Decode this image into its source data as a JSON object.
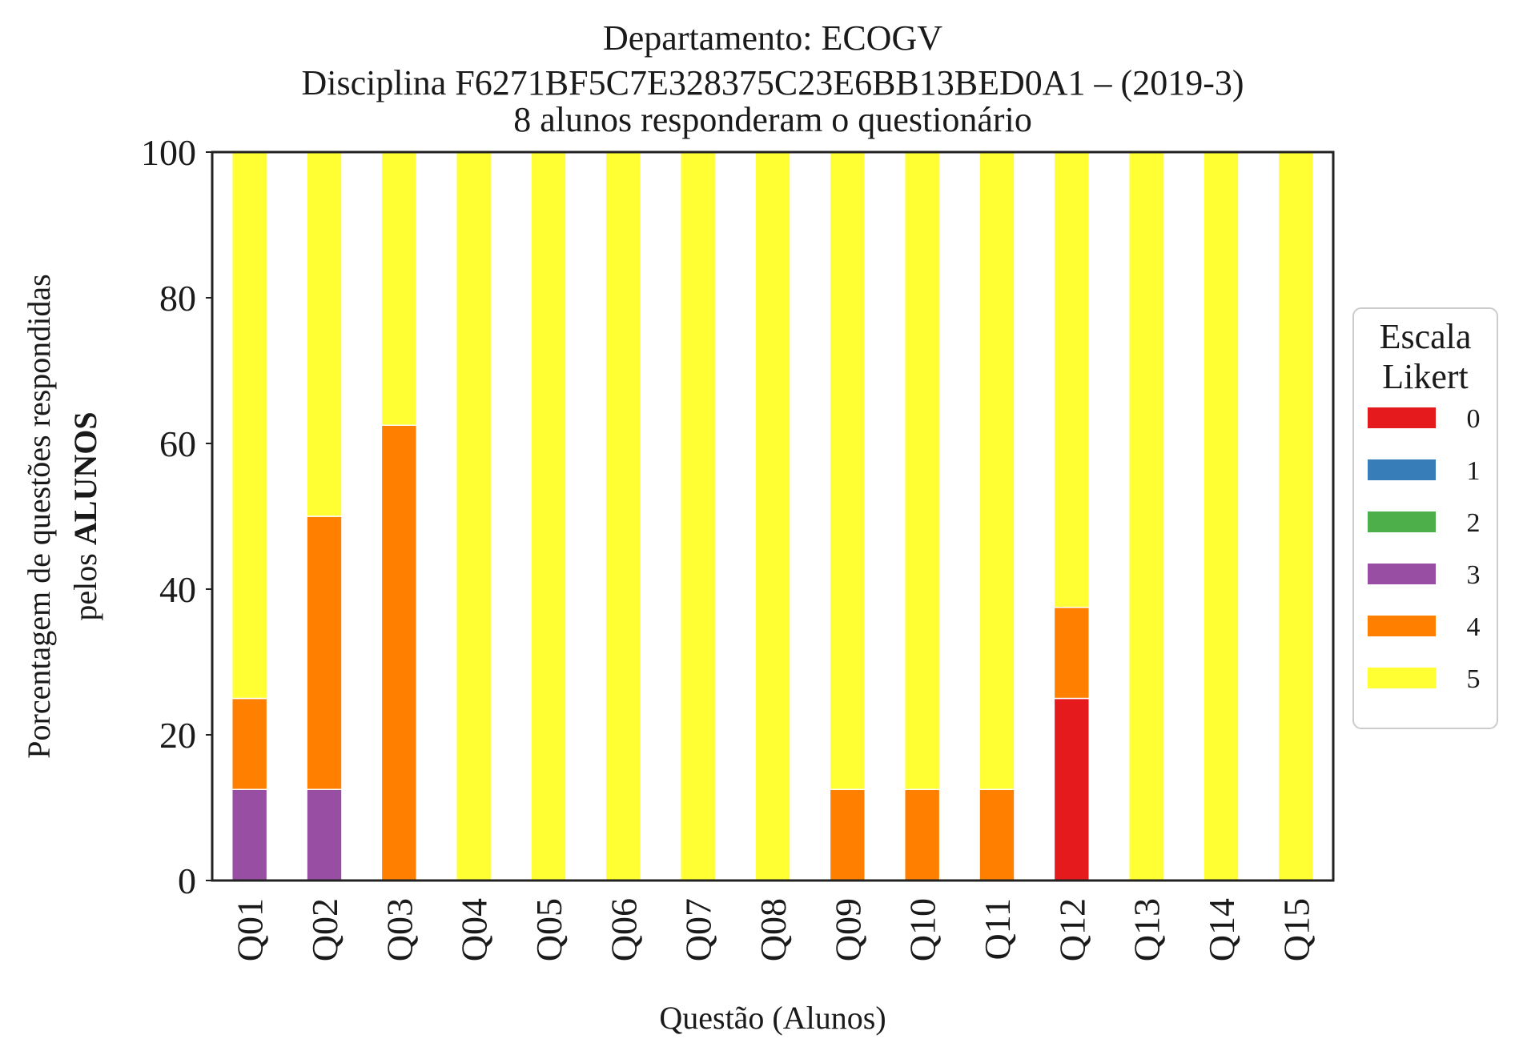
{
  "chart_data": {
    "type": "bar",
    "stacked": true,
    "title_lines": [
      "Departamento: ECOGV",
      "Disciplina F6271BF5C7E328375C23E6BB13BED0A1 – (2019-3)",
      "8 alunos responderam o questionário"
    ],
    "xlabel": "Questão (Alunos)",
    "ylabel_line1": "Porcentagem de questões respondidas",
    "ylabel_line2_prefix": "pelos ",
    "ylabel_line2_bold": "ALUNOS",
    "ylim": [
      0,
      100
    ],
    "yticks": [
      "0",
      "20",
      "40",
      "60",
      "80",
      "100"
    ],
    "categories": [
      "Q01",
      "Q02",
      "Q03",
      "Q04",
      "Q05",
      "Q06",
      "Q07",
      "Q08",
      "Q09",
      "Q10",
      "Q11",
      "Q12",
      "Q13",
      "Q14",
      "Q15"
    ],
    "legend": {
      "title_lines": [
        "Escala",
        "Likert"
      ],
      "placement": "right"
    },
    "grid": false,
    "series": [
      {
        "name": "0",
        "color": "#e41a1c",
        "values": [
          0,
          0,
          0,
          0,
          0,
          0,
          0,
          0,
          0,
          0,
          0,
          25,
          0,
          0,
          0
        ]
      },
      {
        "name": "1",
        "color": "#377eb8",
        "values": [
          0,
          0,
          0,
          0,
          0,
          0,
          0,
          0,
          0,
          0,
          0,
          0,
          0,
          0,
          0
        ]
      },
      {
        "name": "2",
        "color": "#4daf4a",
        "values": [
          0,
          0,
          0,
          0,
          0,
          0,
          0,
          0,
          0,
          0,
          0,
          0,
          0,
          0,
          0
        ]
      },
      {
        "name": "3",
        "color": "#984ea3",
        "values": [
          12.5,
          12.5,
          0,
          0,
          0,
          0,
          0,
          0,
          0,
          0,
          0,
          0,
          0,
          0,
          0
        ]
      },
      {
        "name": "4",
        "color": "#ff7f00",
        "values": [
          12.5,
          37.5,
          62.5,
          0,
          0,
          0,
          0,
          0,
          12.5,
          12.5,
          12.5,
          12.5,
          0,
          0,
          0
        ]
      },
      {
        "name": "5",
        "color": "#ffff33",
        "values": [
          75,
          50,
          37.5,
          100,
          100,
          100,
          100,
          100,
          87.5,
          87.5,
          87.5,
          62.5,
          100,
          100,
          100
        ]
      }
    ]
  }
}
